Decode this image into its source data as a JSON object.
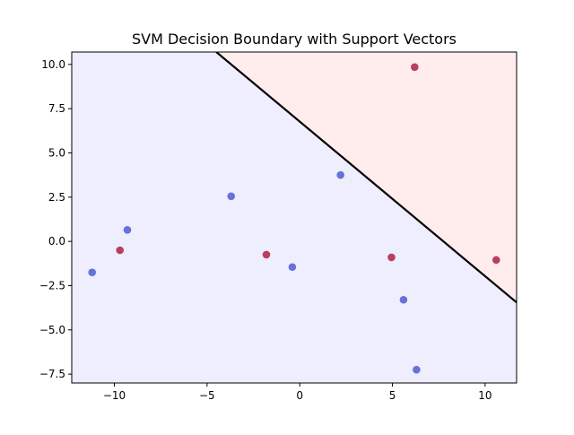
{
  "chart_data": {
    "type": "scatter",
    "title": "SVM Decision Boundary with Support Vectors",
    "xlabel": "",
    "ylabel": "",
    "xlim": [
      -12.3,
      11.7
    ],
    "ylim": [
      -8.0,
      10.7
    ],
    "grid": false,
    "legend": "none",
    "xticks": [
      -10,
      -5,
      0,
      5,
      10
    ],
    "xtick_labels": [
      "−10",
      "−5",
      "0",
      "5",
      "10"
    ],
    "yticks": [
      -7.5,
      -5.0,
      -2.5,
      0.0,
      2.5,
      5.0,
      7.5,
      10.0
    ],
    "ytick_labels": [
      "−7.5",
      "−5.0",
      "−2.5",
      "0.0",
      "2.5",
      "5.0",
      "7.5",
      "10.0"
    ],
    "decision_boundary": {
      "points": [
        [
          -4.5,
          10.7
        ],
        [
          11.7,
          -3.45
        ]
      ],
      "color": "#000000"
    },
    "regions": {
      "below_color": "#eeeeff",
      "above_color": "#ffeded"
    },
    "series": [
      {
        "class": "blue",
        "color": "#6672d6",
        "points": [
          [
            2.2,
            3.75
          ],
          [
            -3.7,
            2.55
          ],
          [
            -9.3,
            0.65
          ],
          [
            -11.2,
            -1.75
          ],
          [
            -0.4,
            -1.45
          ],
          [
            5.6,
            -3.3
          ],
          [
            6.3,
            -7.25
          ]
        ]
      },
      {
        "class": "red",
        "color": "#b8405e",
        "points": [
          [
            6.2,
            9.85
          ],
          [
            -9.7,
            -0.5
          ],
          [
            -1.8,
            -0.75
          ],
          [
            4.95,
            -0.9
          ],
          [
            10.6,
            -1.05
          ]
        ]
      }
    ]
  }
}
